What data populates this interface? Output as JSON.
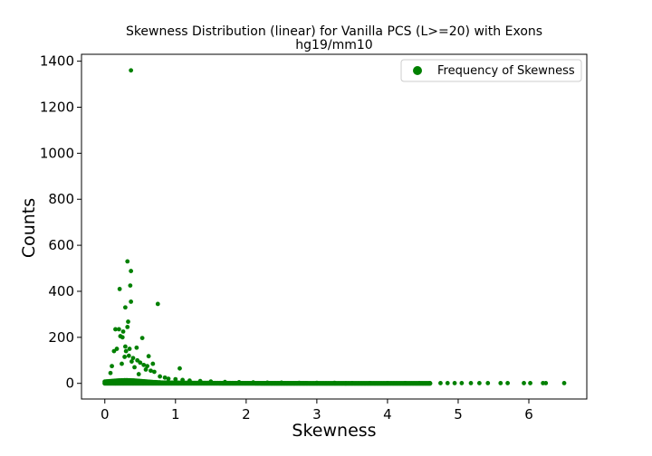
{
  "chart_data": {
    "type": "scatter",
    "title": "Skewness Distribution (linear) for Vanilla PCS (L>=20) with Exons",
    "subtitle": "hg19/mm10",
    "xlabel": "Skewness",
    "ylabel": "Counts",
    "xlim": [
      -0.33,
      6.82
    ],
    "ylim": [
      -68,
      1430
    ],
    "x_ticks": [
      0,
      1,
      2,
      3,
      4,
      5,
      6
    ],
    "y_ticks": [
      0,
      200,
      400,
      600,
      800,
      1000,
      1200,
      1400
    ],
    "grid": false,
    "legend": {
      "position": "top-right",
      "entries": [
        "Frequency of Skewness"
      ]
    },
    "color": "#008000",
    "series": [
      {
        "name": "Frequency of Skewness",
        "points": [
          [
            0.37,
            1360
          ],
          [
            0.32,
            530
          ],
          [
            0.37,
            488
          ],
          [
            0.36,
            425
          ],
          [
            0.21,
            410
          ],
          [
            0.37,
            355
          ],
          [
            0.75,
            345
          ],
          [
            0.29,
            330
          ],
          [
            0.33,
            268
          ],
          [
            0.32,
            245
          ],
          [
            0.15,
            235
          ],
          [
            0.2,
            235
          ],
          [
            0.26,
            225
          ],
          [
            0.22,
            205
          ],
          [
            0.53,
            197
          ],
          [
            0.25,
            200
          ],
          [
            0.29,
            160
          ],
          [
            0.35,
            150
          ],
          [
            0.3,
            140
          ],
          [
            0.17,
            150
          ],
          [
            0.13,
            140
          ],
          [
            0.45,
            155
          ],
          [
            0.62,
            118
          ],
          [
            0.34,
            120
          ],
          [
            0.28,
            115
          ],
          [
            0.4,
            110
          ],
          [
            0.46,
            100
          ],
          [
            0.55,
            80
          ],
          [
            0.6,
            75
          ],
          [
            0.68,
            85
          ],
          [
            0.5,
            90
          ],
          [
            0.38,
            95
          ],
          [
            0.1,
            75
          ],
          [
            0.24,
            85
          ],
          [
            0.42,
            70
          ],
          [
            0.65,
            55
          ],
          [
            0.7,
            50
          ],
          [
            0.58,
            60
          ],
          [
            1.06,
            65
          ],
          [
            0.08,
            45
          ],
          [
            0.48,
            40
          ],
          [
            0.78,
            30
          ],
          [
            0.85,
            25
          ],
          [
            0.9,
            20
          ],
          [
            1.0,
            18
          ],
          [
            1.1,
            15
          ],
          [
            1.2,
            12
          ],
          [
            1.35,
            10
          ],
          [
            1.5,
            8
          ],
          [
            1.7,
            6
          ],
          [
            1.9,
            5
          ],
          [
            2.1,
            4
          ],
          [
            2.3,
            3
          ],
          [
            2.5,
            3
          ],
          [
            2.75,
            2
          ],
          [
            3.0,
            2
          ],
          [
            3.25,
            2
          ],
          [
            3.5,
            1
          ],
          [
            3.75,
            1
          ],
          [
            4.0,
            1
          ],
          [
            4.25,
            1
          ],
          [
            4.45,
            1
          ],
          [
            4.6,
            1
          ],
          [
            4.75,
            1
          ],
          [
            4.85,
            1
          ],
          [
            4.95,
            1
          ],
          [
            5.05,
            1
          ],
          [
            5.18,
            1
          ],
          [
            5.3,
            1
          ],
          [
            5.42,
            1
          ],
          [
            5.6,
            1
          ],
          [
            5.7,
            1
          ],
          [
            5.93,
            1
          ],
          [
            6.02,
            1
          ],
          [
            6.2,
            1
          ],
          [
            6.24,
            1
          ],
          [
            6.5,
            1
          ]
        ]
      }
    ]
  }
}
